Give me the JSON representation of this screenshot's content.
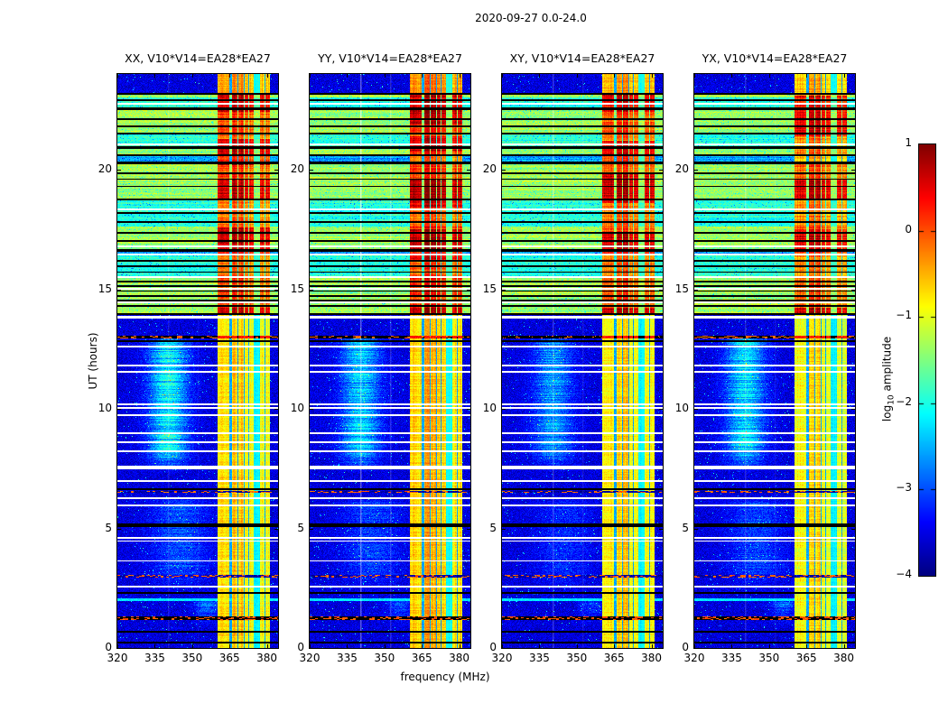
{
  "chart_data": {
    "type": "heatmap",
    "suptitle": "2020-09-27 0.0-24.0",
    "xlabel": "frequency (MHz)",
    "ylabel": "UT (hours)",
    "x_ticks": [
      "320",
      "335",
      "350",
      "365",
      "380"
    ],
    "x_tick_values": [
      320,
      335,
      350,
      365,
      380
    ],
    "y_ticks": [
      "0",
      "5",
      "10",
      "15",
      "20"
    ],
    "y_tick_values": [
      0,
      5,
      10,
      15,
      20
    ],
    "xlim": [
      320,
      384.5
    ],
    "ylim": [
      0,
      24
    ],
    "colorbar": {
      "label_prefix": "log",
      "label_sub": "10",
      "label_suffix": " amplitude",
      "ticks": [
        "1",
        "0",
        "−1",
        "−2",
        "−3",
        "−4"
      ],
      "tick_values": [
        1,
        0,
        -1,
        -2,
        -3,
        -4
      ],
      "vmin": -4,
      "vmax": 1,
      "colormap": "jet"
    },
    "panels": [
      {
        "title": "XX, V10*V14=EA28*EA27",
        "seed": 11,
        "blob_gain": 1.0,
        "band_gain": 1.0,
        "vline_gain": 0.5,
        "flag_dash_prob": 0.5,
        "hot": [
          [
            13.95,
            14.22
          ],
          [
            16.4,
            17.6
          ],
          [
            18.7,
            19.6
          ],
          [
            20.2,
            21.3
          ],
          [
            22.4,
            23.2
          ]
        ]
      },
      {
        "title": "YY, V10*V14=EA28*EA27",
        "seed": 23,
        "blob_gain": 0.85,
        "band_gain": 1.07,
        "vline_gain": 1.6,
        "flag_dash_prob": 0.5,
        "hot": [
          [
            13.95,
            14.22
          ],
          [
            16.2,
            17.5
          ],
          [
            18.4,
            19.6
          ],
          [
            20.8,
            21.4
          ],
          [
            21.9,
            23.2
          ]
        ]
      },
      {
        "title": "XY, V10*V14=EA28*EA27",
        "seed": 37,
        "blob_gain": 0.65,
        "band_gain": 1.0,
        "vline_gain": 0.9,
        "flag_dash_prob": 0.1,
        "hot": [
          [
            13.95,
            14.22
          ],
          [
            16.4,
            17.4
          ],
          [
            18.6,
            19.8
          ],
          [
            20.3,
            21.2
          ],
          [
            22.4,
            23.2
          ]
        ]
      },
      {
        "title": "YX, V10*V14=EA28*EA27",
        "seed": 53,
        "blob_gain": 0.9,
        "band_gain": 0.95,
        "vline_gain": 0.7,
        "flag_dash_prob": 0.5,
        "hot": [
          [
            13.95,
            14.22
          ],
          [
            16.5,
            17.5
          ],
          [
            18.8,
            19.6
          ],
          [
            21.4,
            23.1
          ]
        ]
      }
    ],
    "features": {
      "struct_seed": 7,
      "quiet_level": -3.55,
      "noise_sigma": 0.27,
      "speckle_prob": 0.012,
      "active_range": [
        13.95,
        23.2
      ],
      "top_quiet_range": [
        23.2,
        24
      ],
      "quiet_gaps": [
        [
          13.06,
          13.77
        ]
      ],
      "row_levels": [
        -1.35,
        -1.95,
        -2.6
      ],
      "rfi_columns": [
        {
          "f0": 360.2,
          "f1": 365.1,
          "peak": -0.8
        },
        {
          "f0": 365.9,
          "f1": 370.6,
          "peak": -0.6
        },
        {
          "f0": 371.2,
          "f1": 374.7,
          "peak": -0.85
        },
        {
          "f0": 374.7,
          "f1": 377.2,
          "peak": -2.15
        },
        {
          "f0": 377.2,
          "f1": 381.3,
          "peak": -0.9
        }
      ],
      "rfi_separators": [
        [
          365.1,
          365.9
        ],
        [
          370.6,
          371.2
        ],
        [
          368.15,
          368.5
        ],
        [
          372.55,
          372.9
        ],
        [
          379.2,
          379.5
        ]
      ],
      "vertical_light_lines": [
        {
          "f": 340.2,
          "alpha": 0.22
        },
        {
          "f": 352.2,
          "alpha": 0.1
        }
      ],
      "blobs": [
        {
          "fc": 340.5,
          "fs": 5.5,
          "t0": 7.3,
          "t1": 13.06,
          "amp": 1.4
        },
        {
          "fc": 345.0,
          "fs": 8.0,
          "t0": 2.3,
          "t1": 6.3,
          "amp": 0.55
        },
        {
          "fc": 356.0,
          "fs": 3.5,
          "t0": 0.9,
          "t1": 2.1,
          "amp": 0.85
        }
      ],
      "white_lines": [
        2.57,
        3.64,
        [
          4.44,
          4.5
        ],
        [
          4.57,
          4.63
        ],
        5.96,
        6.27,
        6.98,
        7.51,
        7.58,
        8.23,
        8.6,
        8.98,
        9.74,
        10.04,
        10.2,
        11.55,
        11.8,
        12.6,
        [
          13.77,
          13.9
        ],
        14.45,
        15.02,
        16.8,
        [
          18.3,
          18.38
        ],
        21.05,
        22.75
      ],
      "black_lines": [
        0.23,
        0.68,
        [
          1.17,
          1.32
        ],
        2.3,
        [
          5.05,
          5.2
        ],
        6.64,
        [
          12.8,
          12.88
        ],
        [
          14.25,
          14.33
        ],
        14.52,
        14.72,
        14.92,
        15.12,
        15.32,
        15.52,
        15.72,
        15.95,
        16.2,
        16.6,
        17.0,
        17.35,
        17.8,
        18.2,
        18.75,
        19.3,
        19.85,
        20.3,
        20.6,
        20.9,
        21.5,
        21.8,
        22.1,
        [
          22.5,
          22.6
        ],
        22.9,
        [
          23.14,
          23.22
        ]
      ],
      "speckle_rows": [
        [
          1.17,
          1.32
        ],
        [
          2.95,
          3.06
        ],
        [
          6.5,
          6.58
        ]
      ],
      "flag_rows": [
        [
          12.94,
          13.06
        ]
      ],
      "cyan_rows": [
        [
          1.95,
          2.08
        ]
      ],
      "line_thickness_h": 0.066
    }
  }
}
